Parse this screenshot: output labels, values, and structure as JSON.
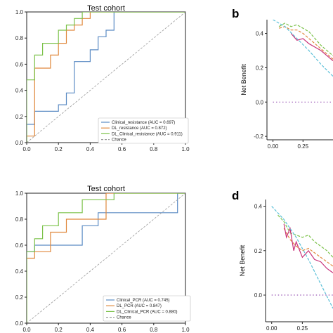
{
  "chart_data": [
    {
      "type": "line",
      "panel": "",
      "title": "Test cohort",
      "xlim": [
        0,
        1
      ],
      "ylim": [
        0,
        1
      ],
      "xticks": [
        "0.0",
        "0.2",
        "0.4",
        "0.6",
        "0.8",
        "1.0"
      ],
      "yticks": [
        "0.0",
        "0.2",
        "0.4",
        "0.6",
        "0.8",
        "1.0"
      ],
      "legend_position": "lower-right",
      "series": [
        {
          "name": "Clinical_resistance (AUC = 0.697)",
          "color": "#5b8bc4",
          "x": [
            0,
            0,
            0.05,
            0.05,
            0.2,
            0.2,
            0.25,
            0.25,
            0.3,
            0.3,
            0.4,
            0.4,
            0.45,
            0.45,
            0.5,
            0.5,
            0.55,
            0.55,
            1.0
          ],
          "y": [
            0,
            0.14,
            0.14,
            0.24,
            0.24,
            0.29,
            0.29,
            0.38,
            0.38,
            0.62,
            0.62,
            0.71,
            0.71,
            0.81,
            0.81,
            0.86,
            0.86,
            1.0,
            1.0
          ]
        },
        {
          "name": "DL_resistance (AUC = 0.872)",
          "color": "#e0883c",
          "x": [
            0,
            0,
            0.05,
            0.05,
            0.15,
            0.15,
            0.2,
            0.2,
            0.25,
            0.25,
            0.3,
            0.3,
            0.35,
            0.35,
            0.4,
            0.4,
            1.0
          ],
          "y": [
            0,
            0.05,
            0.05,
            0.57,
            0.57,
            0.67,
            0.67,
            0.76,
            0.76,
            0.86,
            0.86,
            0.9,
            0.9,
            0.95,
            0.95,
            1.0,
            1.0
          ]
        },
        {
          "name": "DL_Clinical_resistance (AUC = 0.911)",
          "color": "#7cc24a",
          "x": [
            0,
            0,
            0.05,
            0.05,
            0.1,
            0.1,
            0.2,
            0.2,
            0.25,
            0.25,
            0.3,
            0.3,
            0.35,
            0.35,
            1.0
          ],
          "y": [
            0,
            0.48,
            0.48,
            0.67,
            0.67,
            0.76,
            0.76,
            0.86,
            0.86,
            0.9,
            0.9,
            0.95,
            0.95,
            1.0,
            1.0
          ]
        },
        {
          "name": "Chance",
          "color": "#999999",
          "dashed": true,
          "x": [
            0,
            1
          ],
          "y": [
            0,
            1
          ]
        }
      ]
    },
    {
      "type": "line",
      "panel": "b",
      "title": "",
      "ylabel": "Net Benefit",
      "xlim": [
        -0.05,
        0.5
      ],
      "ylim": [
        -0.22,
        0.48
      ],
      "xticks": [
        "0.00",
        "0.25"
      ],
      "yticks": [
        "-0.2",
        "0.0",
        "0.2",
        "0.4"
      ],
      "series": [
        {
          "name": "",
          "color": "#7cc24a",
          "dashed": true,
          "x": [
            0.05,
            0.1,
            0.15,
            0.2,
            0.25,
            0.3,
            0.35,
            0.4,
            0.45,
            0.5
          ],
          "y": [
            0.44,
            0.46,
            0.44,
            0.45,
            0.43,
            0.41,
            0.37,
            0.33,
            0.3,
            0.27
          ]
        },
        {
          "name": "",
          "color": "#e0883c",
          "dashed": true,
          "x": [
            0.05,
            0.1,
            0.15,
            0.2,
            0.25,
            0.3,
            0.35,
            0.4,
            0.45,
            0.5
          ],
          "y": [
            0.43,
            0.44,
            0.42,
            0.42,
            0.4,
            0.37,
            0.34,
            0.31,
            0.28,
            0.25
          ]
        },
        {
          "name": "",
          "color": "#c8327a",
          "x": [
            0.15,
            0.2,
            0.25,
            0.3,
            0.35,
            0.4,
            0.45,
            0.5
          ],
          "y": [
            0.4,
            0.36,
            0.37,
            0.34,
            0.32,
            0.3,
            0.27,
            0.24
          ]
        },
        {
          "name": "",
          "color": "#5bc0d8",
          "dashed": true,
          "x": [
            0.0,
            0.1,
            0.2,
            0.3,
            0.4,
            0.5
          ],
          "y": [
            0.48,
            0.44,
            0.37,
            0.3,
            0.22,
            0.15
          ]
        },
        {
          "name": "",
          "color": "#9b59b6",
          "dotted": true,
          "x": [
            0.0,
            0.5
          ],
          "y": [
            0.0,
            0.0
          ]
        }
      ]
    },
    {
      "type": "line",
      "panel": "",
      "title": "Test cohort",
      "xlim": [
        0,
        1
      ],
      "ylim": [
        0,
        1
      ],
      "xticks": [
        "0.0",
        "0.2",
        "0.4",
        "0.6",
        "0.8",
        "1.0"
      ],
      "yticks": [
        "0.0",
        "0.2",
        "0.4",
        "0.6",
        "0.8",
        "1.0"
      ],
      "legend_position": "lower-right",
      "series": [
        {
          "name": "Clinical_PCR (AUC = 0.745)",
          "color": "#5b8bc4",
          "x": [
            0,
            0,
            0.05,
            0.05,
            0.35,
            0.35,
            0.45,
            0.45,
            0.95,
            0.95,
            1.0
          ],
          "y": [
            0,
            0.55,
            0.55,
            0.6,
            0.6,
            0.75,
            0.75,
            0.85,
            0.85,
            1.0,
            1.0
          ]
        },
        {
          "name": "DL_PCR (AUC = 0.847)",
          "color": "#e0883c",
          "x": [
            0,
            0,
            0.05,
            0.05,
            0.15,
            0.15,
            0.25,
            0.25,
            0.5,
            0.5,
            1.0
          ],
          "y": [
            0,
            0.5,
            0.5,
            0.55,
            0.55,
            0.7,
            0.7,
            0.8,
            0.8,
            1.0,
            1.0
          ]
        },
        {
          "name": "DL_Clinical_PCR (AUC = 0.880)",
          "color": "#7cc24a",
          "x": [
            0,
            0,
            0.05,
            0.05,
            0.1,
            0.1,
            0.2,
            0.2,
            0.35,
            0.35,
            0.55,
            0.55,
            1.0
          ],
          "y": [
            0,
            0.55,
            0.55,
            0.65,
            0.65,
            0.75,
            0.75,
            0.85,
            0.85,
            0.95,
            0.95,
            1.0,
            1.0
          ]
        },
        {
          "name": "Chance",
          "color": "#999999",
          "dashed": true,
          "x": [
            0,
            1
          ],
          "y": [
            0,
            1
          ]
        }
      ]
    },
    {
      "type": "line",
      "panel": "d",
      "title": "",
      "ylabel": "Net Benefit",
      "xlim": [
        -0.05,
        0.5
      ],
      "ylim": [
        -0.12,
        0.43
      ],
      "xticks": [
        "0.00",
        "0.25"
      ],
      "yticks": [
        "0.0",
        "0.2",
        "0.4"
      ],
      "series": [
        {
          "name": "",
          "color": "#7cc24a",
          "dashed": true,
          "x": [
            0.05,
            0.1,
            0.15,
            0.2,
            0.25,
            0.3,
            0.35,
            0.4,
            0.45,
            0.5
          ],
          "y": [
            0.36,
            0.33,
            0.28,
            0.27,
            0.26,
            0.27,
            0.24,
            0.22,
            0.2,
            0.17
          ]
        },
        {
          "name": "",
          "color": "#e0883c",
          "dashed": true,
          "x": [
            0.1,
            0.15,
            0.2,
            0.25,
            0.3,
            0.35,
            0.4,
            0.45,
            0.5
          ],
          "y": [
            0.3,
            0.25,
            0.22,
            0.2,
            0.21,
            0.19,
            0.17,
            0.15,
            0.13
          ]
        },
        {
          "name": "",
          "color": "#c8327a",
          "x": [
            0.1,
            0.12,
            0.15,
            0.18,
            0.2,
            0.25,
            0.3,
            0.35,
            0.4,
            0.45,
            0.5
          ],
          "y": [
            0.32,
            0.26,
            0.3,
            0.2,
            0.24,
            0.17,
            0.2,
            0.16,
            0.15,
            0.12,
            0.1
          ]
        },
        {
          "name": "",
          "color": "#5bc0d8",
          "dashed": true,
          "x": [
            0.0,
            0.1,
            0.2,
            0.3,
            0.4,
            0.5
          ],
          "y": [
            0.4,
            0.34,
            0.26,
            0.16,
            0.05,
            -0.06
          ]
        },
        {
          "name": "",
          "color": "#9b59b6",
          "dotted": true,
          "x": [
            0.0,
            0.5
          ],
          "y": [
            0.0,
            0.0
          ]
        }
      ]
    }
  ]
}
